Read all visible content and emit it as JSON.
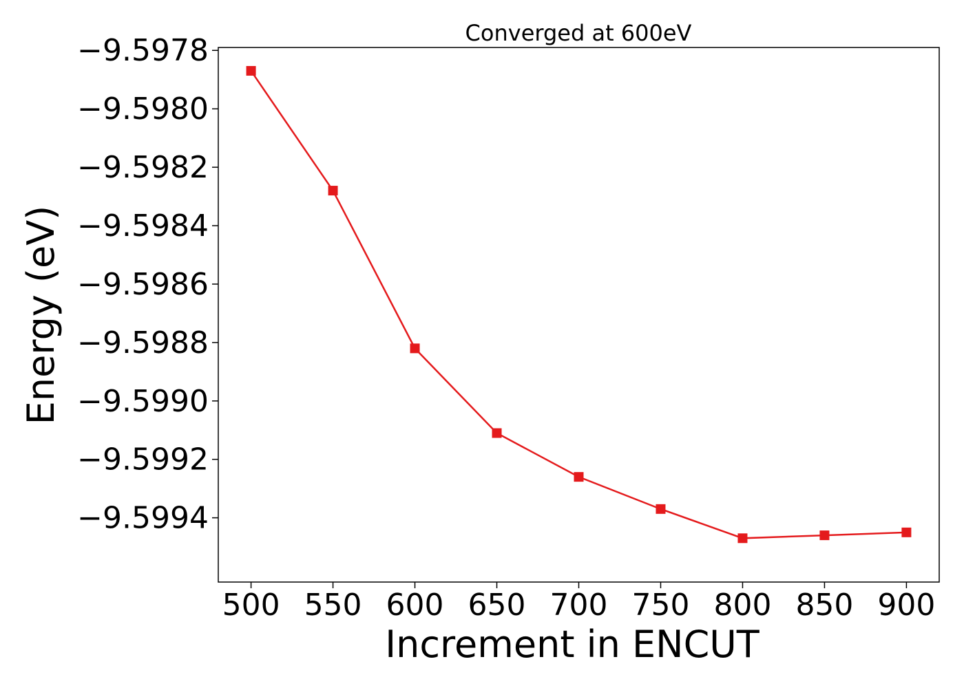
{
  "chart_data": {
    "type": "line",
    "title": "Converged at 600eV",
    "xlabel": "Increment in ENCUT",
    "ylabel": "Energy (eV)",
    "x": [
      500,
      550,
      600,
      650,
      700,
      750,
      800,
      850,
      900
    ],
    "series": [
      {
        "values": [
          -9.59787,
          -9.59828,
          -9.59882,
          -9.59911,
          -9.59926,
          -9.59937,
          -9.59947,
          -9.59946,
          -9.59945
        ],
        "color": "#e41a1c",
        "marker": "square"
      }
    ],
    "xlim": [
      480,
      920
    ],
    "ylim": [
      -9.59962,
      -9.59779
    ],
    "xticks": [
      500,
      550,
      600,
      650,
      700,
      750,
      800,
      850,
      900
    ],
    "xtick_labels": [
      "500",
      "550",
      "600",
      "650",
      "700",
      "750",
      "800",
      "850",
      "900"
    ],
    "yticks": [
      -9.5978,
      -9.598,
      -9.5982,
      -9.5984,
      -9.5986,
      -9.5988,
      -9.599,
      -9.5992,
      -9.5994
    ],
    "ytick_labels": [
      "−9.5978",
      "−9.5980",
      "−9.5982",
      "−9.5984",
      "−9.5986",
      "−9.5988",
      "−9.5990",
      "−9.5992",
      "−9.5994"
    ],
    "grid": false,
    "legend": "none"
  }
}
